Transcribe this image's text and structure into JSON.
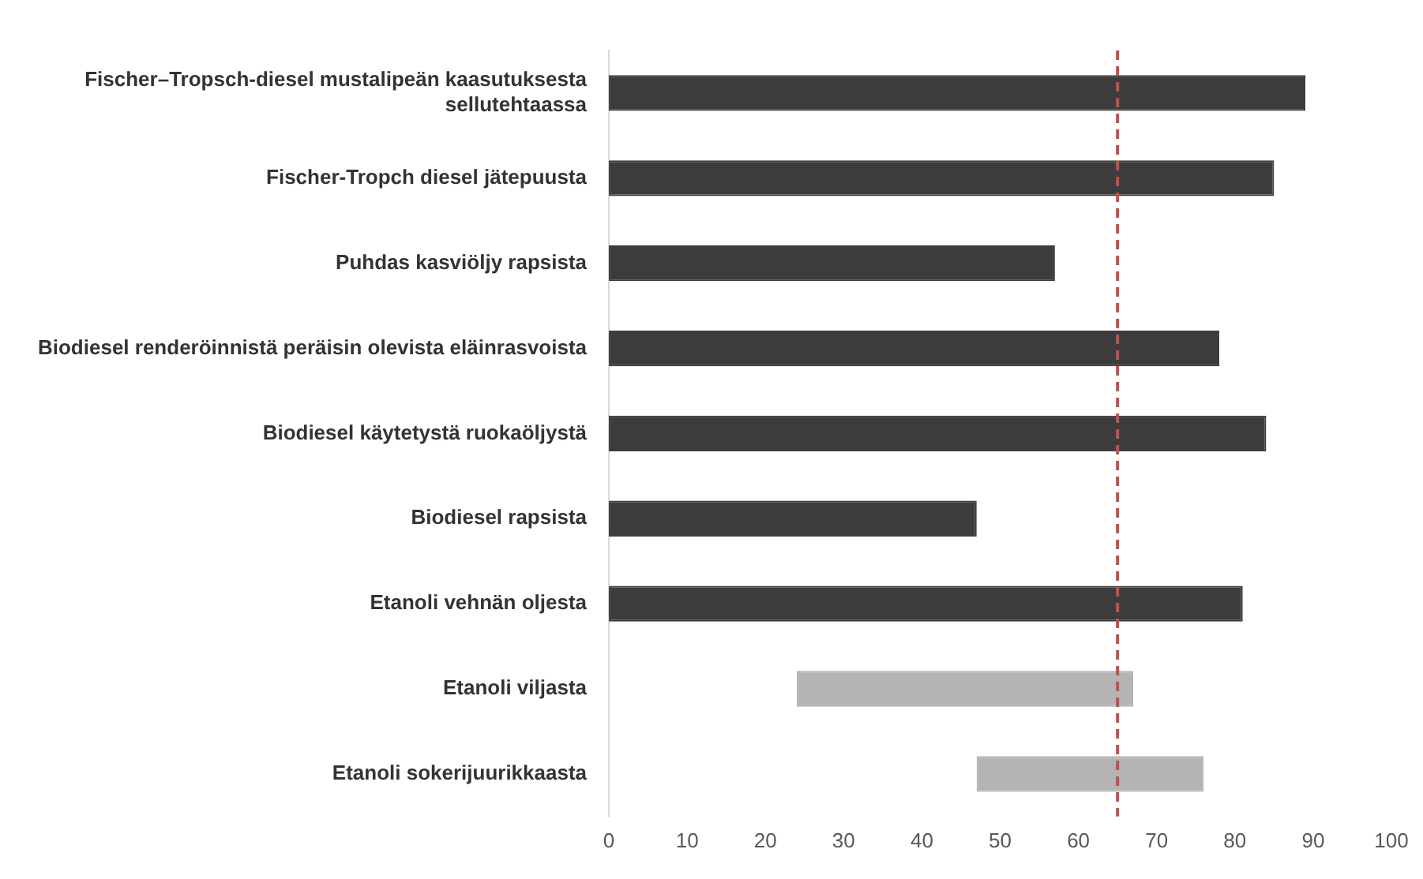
{
  "chart_data": {
    "type": "bar",
    "orientation": "horizontal",
    "categories": [
      "Fischer–Tropsch-diesel mustalipeän kaasutuksesta sellutehtaassa",
      "Fischer-Tropch diesel jätepuusta",
      "Puhdas kasviöljy rapsista",
      "Biodiesel renderöinnistä peräisin olevista eläinrasvoista",
      "Biodiesel käytetystä ruokaöljystä",
      "Biodiesel rapsista",
      "Etanoli vehnän oljesta",
      "Etanoli viljasta",
      "Etanoli sokerijuurikkaasta"
    ],
    "values": [
      89,
      85,
      57,
      78,
      84,
      47,
      81,
      43,
      29
    ],
    "base": [
      0,
      0,
      0,
      0,
      0,
      0,
      0,
      24,
      47
    ],
    "colors": [
      "#3c3c3c",
      "#3c3c3c",
      "#3c3c3c",
      "#3c3c3c",
      "#3c3c3c",
      "#3c3c3c",
      "#3c3c3c",
      "#b4b4b4",
      "#b4b4b4"
    ],
    "xlim": [
      0,
      100
    ],
    "xticks": [
      0,
      10,
      20,
      30,
      40,
      50,
      60,
      70,
      80,
      90,
      100
    ],
    "ref_lines": [
      {
        "axis": "x",
        "value": 65,
        "color": "#c0504d",
        "line_style": "dashed"
      }
    ],
    "grid": false,
    "legend": false
  }
}
